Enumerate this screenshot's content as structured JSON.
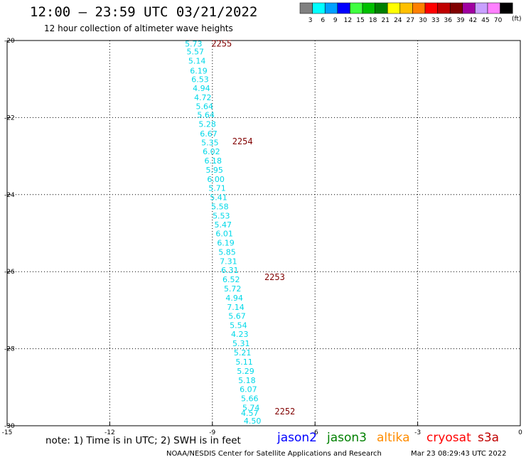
{
  "header": {
    "title": "12:00 – 23:59 UTC 03/21/2022",
    "subtitle": "12 hour collection of altimeter wave heights"
  },
  "legend": {
    "unit": "(ft)",
    "swatches": [
      {
        "label": "3",
        "color": "#808080"
      },
      {
        "label": "6",
        "color": "#00ffff"
      },
      {
        "label": "9",
        "color": "#00a0ff"
      },
      {
        "label": "12",
        "color": "#0000ff"
      },
      {
        "label": "15",
        "color": "#40ff40"
      },
      {
        "label": "18",
        "color": "#00c000"
      },
      {
        "label": "21",
        "color": "#008000"
      },
      {
        "label": "24",
        "color": "#ffff00"
      },
      {
        "label": "27",
        "color": "#ffc000"
      },
      {
        "label": "30",
        "color": "#ff8000"
      },
      {
        "label": "33",
        "color": "#ff0000"
      },
      {
        "label": "36",
        "color": "#c00000"
      },
      {
        "label": "39",
        "color": "#800000"
      },
      {
        "label": "42",
        "color": "#a000a0"
      },
      {
        "label": "45",
        "color": "#c8a0ff"
      },
      {
        "label": "70",
        "color": "#ff80ff"
      },
      {
        "label": "",
        "color": "#000000"
      }
    ]
  },
  "footer": {
    "note": "note:  1) Time is in UTC; 2) SWH is in feet",
    "credit": "NOAA/NESDIS Center for Satellite Applications and Research",
    "generated": "Mar 23 08:29:43 UTC 2022",
    "satellites": [
      {
        "name": "jason2",
        "color": "#0000ff"
      },
      {
        "name": "jason3",
        "color": "#008000"
      },
      {
        "name": "altika",
        "color": "#ff8c00"
      },
      {
        "name": "cryosat",
        "color": "#ff0000"
      },
      {
        "name": "s3a",
        "color": "#c00000"
      }
    ]
  },
  "chart_data": {
    "type": "scatter",
    "xlim": [
      -15,
      0
    ],
    "ylim": [
      -30,
      -20
    ],
    "x_ticks": [
      -15,
      -12,
      -9,
      -6,
      -3,
      0
    ],
    "y_ticks": [
      -20,
      -22,
      -24,
      -26,
      -28,
      -30
    ],
    "grid": true,
    "value_color": "#00d8e8",
    "time_color": "#800000",
    "points": [
      {
        "lon": -9.55,
        "lat": -20.08,
        "swh": "5.73"
      },
      {
        "lon": -9.5,
        "lat": -20.29,
        "swh": "5.57"
      },
      {
        "lon": -9.45,
        "lat": -20.53,
        "swh": "5.14"
      },
      {
        "lon": -9.4,
        "lat": -20.78,
        "swh": "6.19"
      },
      {
        "lon": -9.36,
        "lat": -21.01,
        "swh": "6.53"
      },
      {
        "lon": -9.32,
        "lat": -21.24,
        "swh": "4.94"
      },
      {
        "lon": -9.28,
        "lat": -21.48,
        "swh": "4.72"
      },
      {
        "lon": -9.23,
        "lat": -21.71,
        "swh": "5.64"
      },
      {
        "lon": -9.19,
        "lat": -21.93,
        "swh": "5.64"
      },
      {
        "lon": -9.15,
        "lat": -22.17,
        "swh": "5.28"
      },
      {
        "lon": -9.11,
        "lat": -22.42,
        "swh": "6.67"
      },
      {
        "lon": -9.07,
        "lat": -22.65,
        "swh": "5.35"
      },
      {
        "lon": -9.03,
        "lat": -22.88,
        "swh": "6.02"
      },
      {
        "lon": -8.98,
        "lat": -23.12,
        "swh": "6.18"
      },
      {
        "lon": -8.94,
        "lat": -23.36,
        "swh": "5.95"
      },
      {
        "lon": -8.9,
        "lat": -23.6,
        "swh": "6.00"
      },
      {
        "lon": -8.86,
        "lat": -23.83,
        "swh": "5.71"
      },
      {
        "lon": -8.82,
        "lat": -24.07,
        "swh": "5.41"
      },
      {
        "lon": -8.78,
        "lat": -24.31,
        "swh": "5.58"
      },
      {
        "lon": -8.74,
        "lat": -24.55,
        "swh": "5.53"
      },
      {
        "lon": -8.69,
        "lat": -24.78,
        "swh": "5.47"
      },
      {
        "lon": -8.65,
        "lat": -25.01,
        "swh": "6.01"
      },
      {
        "lon": -8.61,
        "lat": -25.25,
        "swh": "6.19"
      },
      {
        "lon": -8.57,
        "lat": -25.49,
        "swh": "5.85"
      },
      {
        "lon": -8.53,
        "lat": -25.73,
        "swh": "7.31"
      },
      {
        "lon": -8.49,
        "lat": -25.96,
        "swh": "6.31"
      },
      {
        "lon": -8.45,
        "lat": -26.2,
        "swh": "6.52"
      },
      {
        "lon": -8.41,
        "lat": -26.44,
        "swh": "5.72"
      },
      {
        "lon": -8.36,
        "lat": -26.68,
        "swh": "4.94"
      },
      {
        "lon": -8.32,
        "lat": -26.92,
        "swh": "7.14"
      },
      {
        "lon": -8.28,
        "lat": -27.15,
        "swh": "5.67"
      },
      {
        "lon": -8.24,
        "lat": -27.39,
        "swh": "5.54"
      },
      {
        "lon": -8.2,
        "lat": -27.62,
        "swh": "4.23"
      },
      {
        "lon": -8.16,
        "lat": -27.86,
        "swh": "5.31"
      },
      {
        "lon": -8.12,
        "lat": -28.1,
        "swh": "5.21"
      },
      {
        "lon": -8.07,
        "lat": -28.34,
        "swh": "5.11"
      },
      {
        "lon": -8.03,
        "lat": -28.58,
        "swh": "5.29"
      },
      {
        "lon": -7.99,
        "lat": -28.82,
        "swh": "5.18"
      },
      {
        "lon": -7.95,
        "lat": -29.05,
        "swh": "6.07"
      },
      {
        "lon": -7.91,
        "lat": -29.29,
        "swh": "5.66"
      },
      {
        "lon": -7.87,
        "lat": -29.53,
        "swh": "5.74"
      },
      {
        "lon": -7.91,
        "lat": -29.67,
        "swh": "4.57"
      },
      {
        "lon": -7.83,
        "lat": -29.87,
        "swh": "4.50"
      }
    ],
    "time_labels": [
      {
        "lon": -8.73,
        "lat": -20.08,
        "text": "2255"
      },
      {
        "lon": -8.12,
        "lat": -22.62,
        "text": "2254"
      },
      {
        "lon": -7.18,
        "lat": -26.14,
        "text": "2253"
      },
      {
        "lon": -6.88,
        "lat": -29.63,
        "text": "2252"
      }
    ]
  }
}
